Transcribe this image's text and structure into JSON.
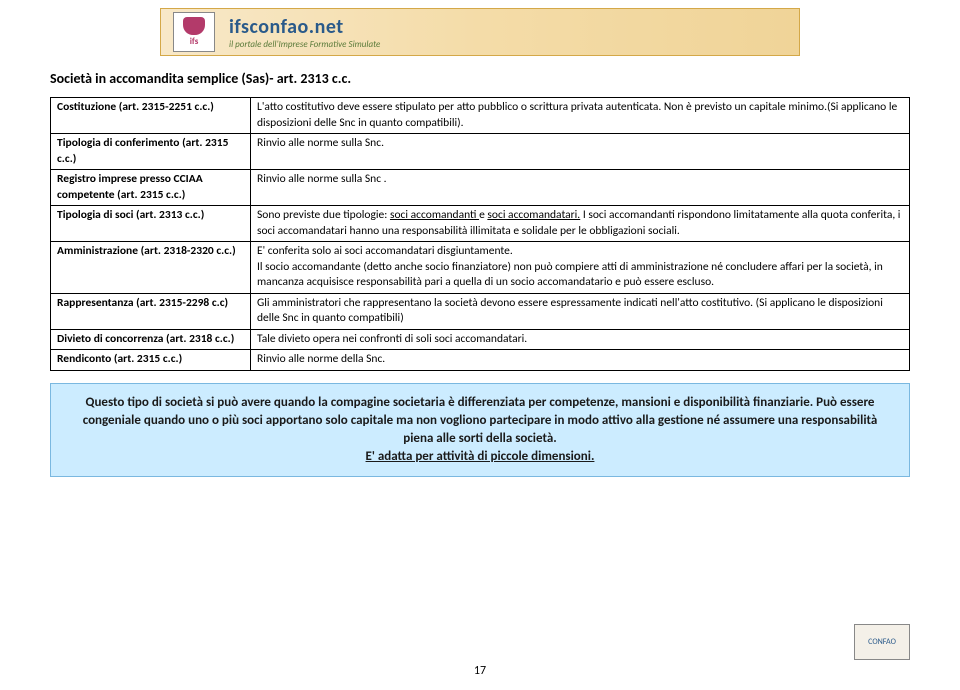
{
  "header": {
    "brand_name": "ifsconfao.net",
    "brand_tag": "il portale dell'Imprese Formative Simulate"
  },
  "section_title": "Società in accomandita semplice (Sas)- art. 2313 c.c.",
  "table": {
    "rows": [
      {
        "label": "Costituzione (art. 2315-2251 c.c.)",
        "value": "L'atto costitutivo deve essere stipulato per atto pubblico o scrittura privata autenticata. Non è previsto un capitale minimo.(Si applicano le disposizioni delle Snc in quanto compatibili)."
      },
      {
        "label": "Tipologia di conferimento (art. 2315 c.c.)",
        "value": "Rinvio alle norme sulla Snc."
      },
      {
        "label": "Registro imprese presso CCIAA competente (art. 2315 c.c.)",
        "value": "Rinvio alle norme sulla  Snc ."
      },
      {
        "label": "Tipologia di soci (art. 2313 c.c.)",
        "value_pre": "Sono previste due tipologie: ",
        "u1": "soci accomandanti ",
        "mid": "e ",
        "u2": "soci accomandatari.",
        "value_post": " I soci accomandanti rispondono limitatamente alla quota conferita, i soci accomandatari hanno una responsabilità illimitata e solidale per le obbligazioni sociali."
      },
      {
        "label": "Amministrazione (art. 2318-2320 c.c.)",
        "value": "E' conferita solo ai soci accomandatari disgiuntamente.\nIl socio accomandante (detto anche socio finanziatore) non può compiere atti di amministrazione né concludere affari per la società, in mancanza acquisisce responsabilità pari a quella di un socio accomandatario e può essere escluso."
      },
      {
        "label": "Rappresentanza (art. 2315-2298 c.c)",
        "value": "Gli amministratori che rappresentano la società devono essere espressamente indicati nell'atto costitutivo. (Si applicano le disposizioni delle Snc in quanto compatibili)"
      },
      {
        "label": "Divieto di concorrenza (art. 2318 c.c.)",
        "value": "Tale divieto opera nei confronti di soli soci accomandatari."
      },
      {
        "label": "Rendiconto (art. 2315 c.c.)",
        "value": "Rinvio alle norme della Snc."
      }
    ]
  },
  "callout": {
    "line1": "Questo tipo di società si può avere quando la compagine societaria è differenziata per competenze, mansioni e disponibilità finanziarie. Può essere congeniale quando uno o più soci apportano solo capitale ma non vogliono partecipare in modo attivo alla gestione né assumere una responsabilità piena alle sorti della società.",
    "line2": "E' adatta per attività di piccole dimensioni."
  },
  "footer_logo": "CONFAO",
  "page_number": "17",
  "colors": {
    "header_bg_start": "#f8e8c8",
    "header_bg_end": "#f0d498",
    "callout_bg": "#ccecff",
    "callout_border": "#7ab8e0",
    "brand_color": "#2a5a8a"
  }
}
